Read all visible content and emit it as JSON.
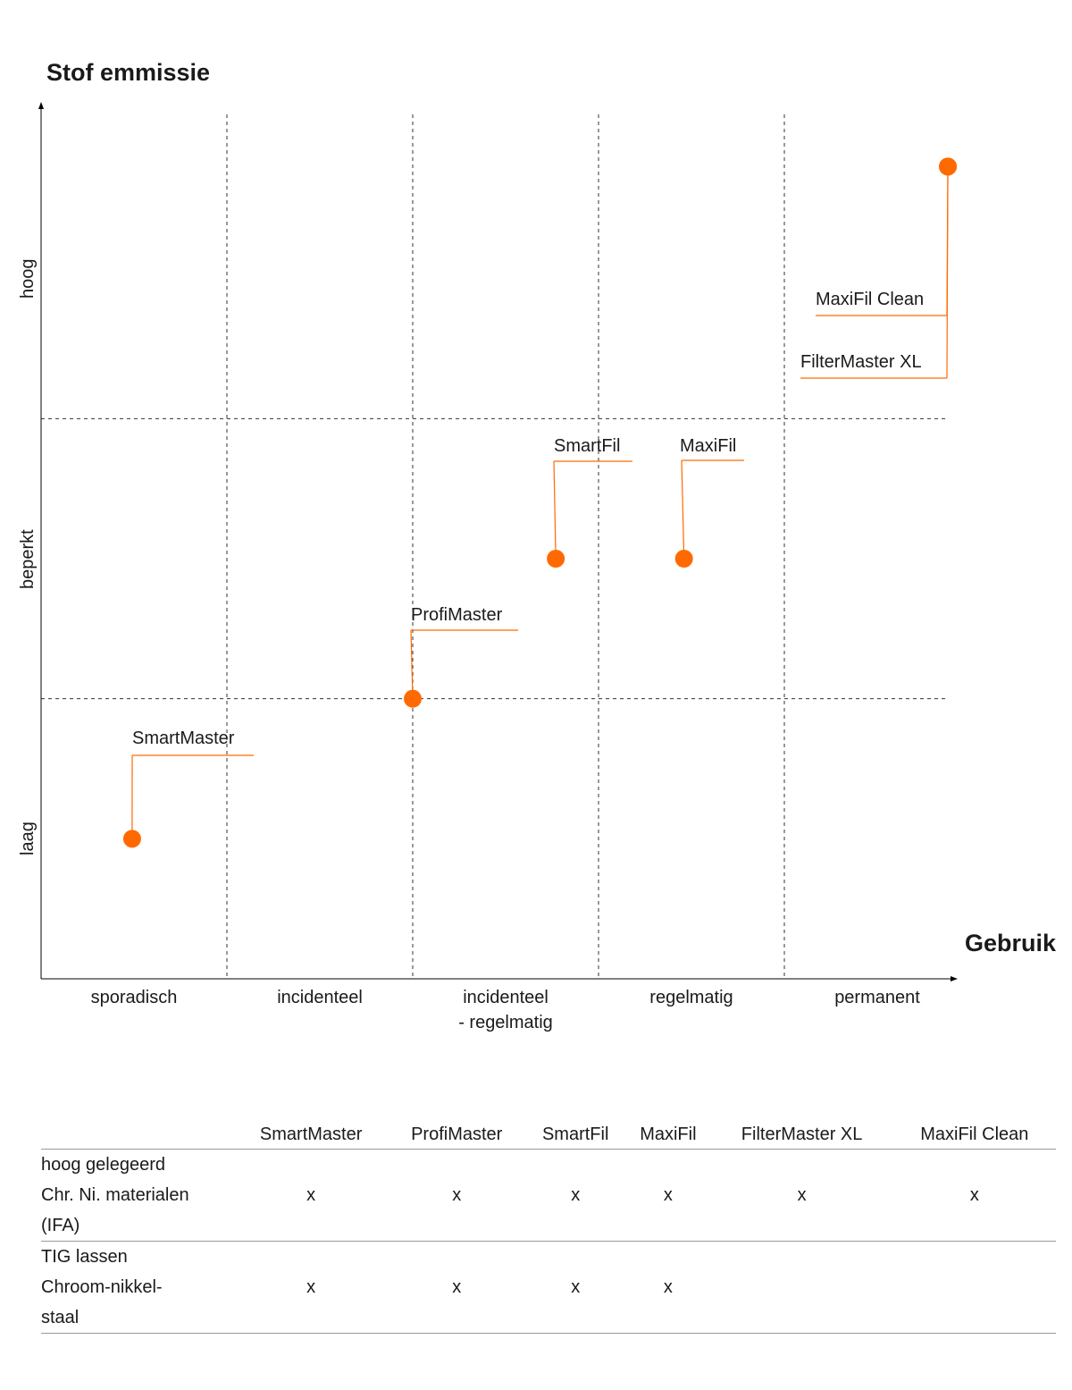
{
  "chart_data": {
    "type": "scatter",
    "ylabel": "Stof emmissie",
    "xlabel": "Gebruik",
    "x_categories": [
      "sporadisch",
      "incidenteel",
      "incidenteel - regelmatig",
      "regelmatig",
      "permanent"
    ],
    "x_tick_lines": [
      [
        "sporadisch"
      ],
      [
        "incidenteel"
      ],
      [
        "incidenteel",
        "- regelmatig"
      ],
      [
        "regelmatig"
      ],
      [
        "permanent"
      ]
    ],
    "y_categories": [
      "laag",
      "beperkt",
      "hoog"
    ],
    "xlim": [
      0,
      5
    ],
    "ylim": [
      0,
      3
    ],
    "grid": true,
    "point_color": "#ff6a00",
    "points": [
      {
        "label": "SmartMaster",
        "x": 0.49,
        "y": 0.5
      },
      {
        "label": "ProfiMaster",
        "x": 2.0,
        "y": 1.0
      },
      {
        "label": "SmartFil",
        "x": 2.77,
        "y": 1.5
      },
      {
        "label": "MaxiFil",
        "x": 3.46,
        "y": 1.5
      },
      {
        "label": "MaxiFil Clean",
        "x": 4.88,
        "y": 2.9
      },
      {
        "label": "FilterMaster XL",
        "x": 4.88,
        "y": 2.9
      }
    ]
  },
  "table": {
    "columns": [
      "SmartMaster",
      "ProfiMaster",
      "SmartFil",
      "MaxiFil",
      "FilterMaster XL",
      "MaxiFil Clean"
    ],
    "rows": [
      {
        "label": [
          "hoog gelegeerd",
          "Chr. Ni. materialen",
          "(IFA)"
        ],
        "values": [
          "x",
          "x",
          "x",
          "x",
          "x",
          "x"
        ]
      },
      {
        "label": [
          "TIG lassen",
          "Chroom-nikkel-",
          "staal"
        ],
        "values": [
          "x",
          "x",
          "x",
          "x",
          "",
          ""
        ]
      }
    ]
  }
}
